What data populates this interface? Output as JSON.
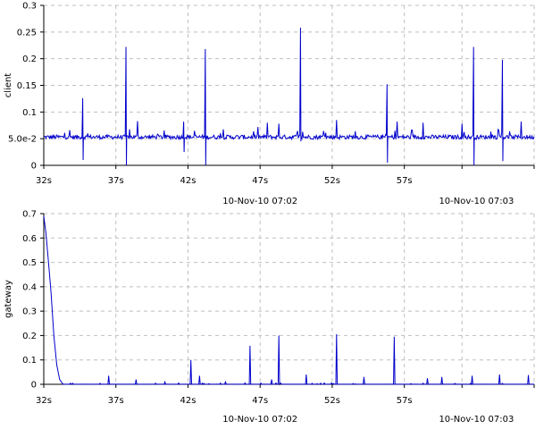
{
  "chart_data": [
    {
      "type": "line",
      "ylabel": "client",
      "ylim": [
        0,
        0.3
      ],
      "yticks": [
        {
          "value": 0,
          "label": "0"
        },
        {
          "value": 0.05,
          "label": "5.0e-2"
        },
        {
          "value": 0.1,
          "label": "0.1"
        },
        {
          "value": 0.15,
          "label": "0.15"
        },
        {
          "value": 0.2,
          "label": "0.2"
        },
        {
          "value": 0.25,
          "label": "0.25"
        },
        {
          "value": 0.3,
          "label": "0.3"
        }
      ],
      "xlim": [
        32,
        66
      ],
      "xticks": [
        {
          "value": 32,
          "label": "32s"
        },
        {
          "value": 37,
          "label": "37s"
        },
        {
          "value": 42,
          "label": "42s"
        },
        {
          "value": 47,
          "label": "47s"
        },
        {
          "value": 52,
          "label": "52s"
        },
        {
          "value": 57,
          "label": "57s"
        }
      ],
      "xgrid": [
        32,
        37,
        42,
        47,
        52,
        57,
        61,
        66
      ],
      "date_labels": [
        {
          "value": 47,
          "label": "10-Nov-10 07:02"
        },
        {
          "value": 62,
          "label": "10-Nov-10 07:03"
        }
      ],
      "grid": true,
      "series": [
        {
          "color": "#0000cc",
          "baseline": 0.053,
          "spikes": [
            {
              "x": 34.7,
              "y": 0.126,
              "dip": 0.01
            },
            {
              "x": 37.7,
              "y": 0.222,
              "dip": 0.0
            },
            {
              "x": 38.5,
              "y": 0.083
            },
            {
              "x": 41.7,
              "y": 0.082,
              "dip": 0.025
            },
            {
              "x": 43.2,
              "y": 0.218,
              "dip": 0.0
            },
            {
              "x": 47.5,
              "y": 0.08
            },
            {
              "x": 48.3,
              "y": 0.078
            },
            {
              "x": 49.8,
              "y": 0.258,
              "dip": 0.045
            },
            {
              "x": 52.3,
              "y": 0.085
            },
            {
              "x": 55.8,
              "y": 0.152,
              "dip": 0.005
            },
            {
              "x": 56.5,
              "y": 0.082
            },
            {
              "x": 58.3,
              "y": 0.08
            },
            {
              "x": 61.0,
              "y": 0.078
            },
            {
              "x": 61.8,
              "y": 0.222,
              "dip": 0.0
            },
            {
              "x": 63.8,
              "y": 0.198,
              "dip": 0.008
            },
            {
              "x": 65.1,
              "y": 0.082
            }
          ]
        }
      ]
    },
    {
      "type": "line",
      "ylabel": "gateway",
      "ylim": [
        0,
        0.7
      ],
      "yticks": [
        {
          "value": 0,
          "label": "0"
        },
        {
          "value": 0.1,
          "label": "0.1"
        },
        {
          "value": 0.2,
          "label": "0.2"
        },
        {
          "value": 0.3,
          "label": "0.3"
        },
        {
          "value": 0.4,
          "label": "0.4"
        },
        {
          "value": 0.5,
          "label": "0.5"
        },
        {
          "value": 0.6,
          "label": "0.6"
        },
        {
          "value": 0.7,
          "label": "0.7"
        }
      ],
      "xlim": [
        32,
        66
      ],
      "xticks": [
        {
          "value": 32,
          "label": "32s"
        },
        {
          "value": 37,
          "label": "37s"
        },
        {
          "value": 42,
          "label": "42s"
        },
        {
          "value": 47,
          "label": "47s"
        },
        {
          "value": 52,
          "label": "52s"
        },
        {
          "value": 57,
          "label": "57s"
        }
      ],
      "xgrid": [
        32,
        37,
        42,
        47,
        52,
        57,
        61,
        66
      ],
      "date_labels": [
        {
          "value": 47,
          "label": "10-Nov-10 07:02"
        },
        {
          "value": 62,
          "label": "10-Nov-10 07:03"
        }
      ],
      "grid": true,
      "series": [
        {
          "color": "#0000cc",
          "baseline": 0.0,
          "decay": [
            {
              "x": 32.0,
              "y": 0.69
            },
            {
              "x": 32.15,
              "y": 0.62
            },
            {
              "x": 32.3,
              "y": 0.52
            },
            {
              "x": 32.5,
              "y": 0.38
            },
            {
              "x": 32.7,
              "y": 0.2
            },
            {
              "x": 32.9,
              "y": 0.08
            },
            {
              "x": 33.1,
              "y": 0.02
            },
            {
              "x": 33.3,
              "y": 0.003
            }
          ],
          "spikes": [
            {
              "x": 36.5,
              "y": 0.035
            },
            {
              "x": 38.4,
              "y": 0.02
            },
            {
              "x": 40.4,
              "y": 0.01
            },
            {
              "x": 42.2,
              "y": 0.1
            },
            {
              "x": 42.8,
              "y": 0.035
            },
            {
              "x": 44.6,
              "y": 0.012
            },
            {
              "x": 46.3,
              "y": 0.158
            },
            {
              "x": 47.8,
              "y": 0.02
            },
            {
              "x": 48.3,
              "y": 0.2
            },
            {
              "x": 50.2,
              "y": 0.04
            },
            {
              "x": 52.3,
              "y": 0.205
            },
            {
              "x": 54.2,
              "y": 0.03
            },
            {
              "x": 56.3,
              "y": 0.195
            },
            {
              "x": 58.6,
              "y": 0.025
            },
            {
              "x": 59.6,
              "y": 0.03
            },
            {
              "x": 61.7,
              "y": 0.035
            },
            {
              "x": 63.6,
              "y": 0.04
            },
            {
              "x": 65.6,
              "y": 0.038
            }
          ]
        }
      ]
    }
  ]
}
